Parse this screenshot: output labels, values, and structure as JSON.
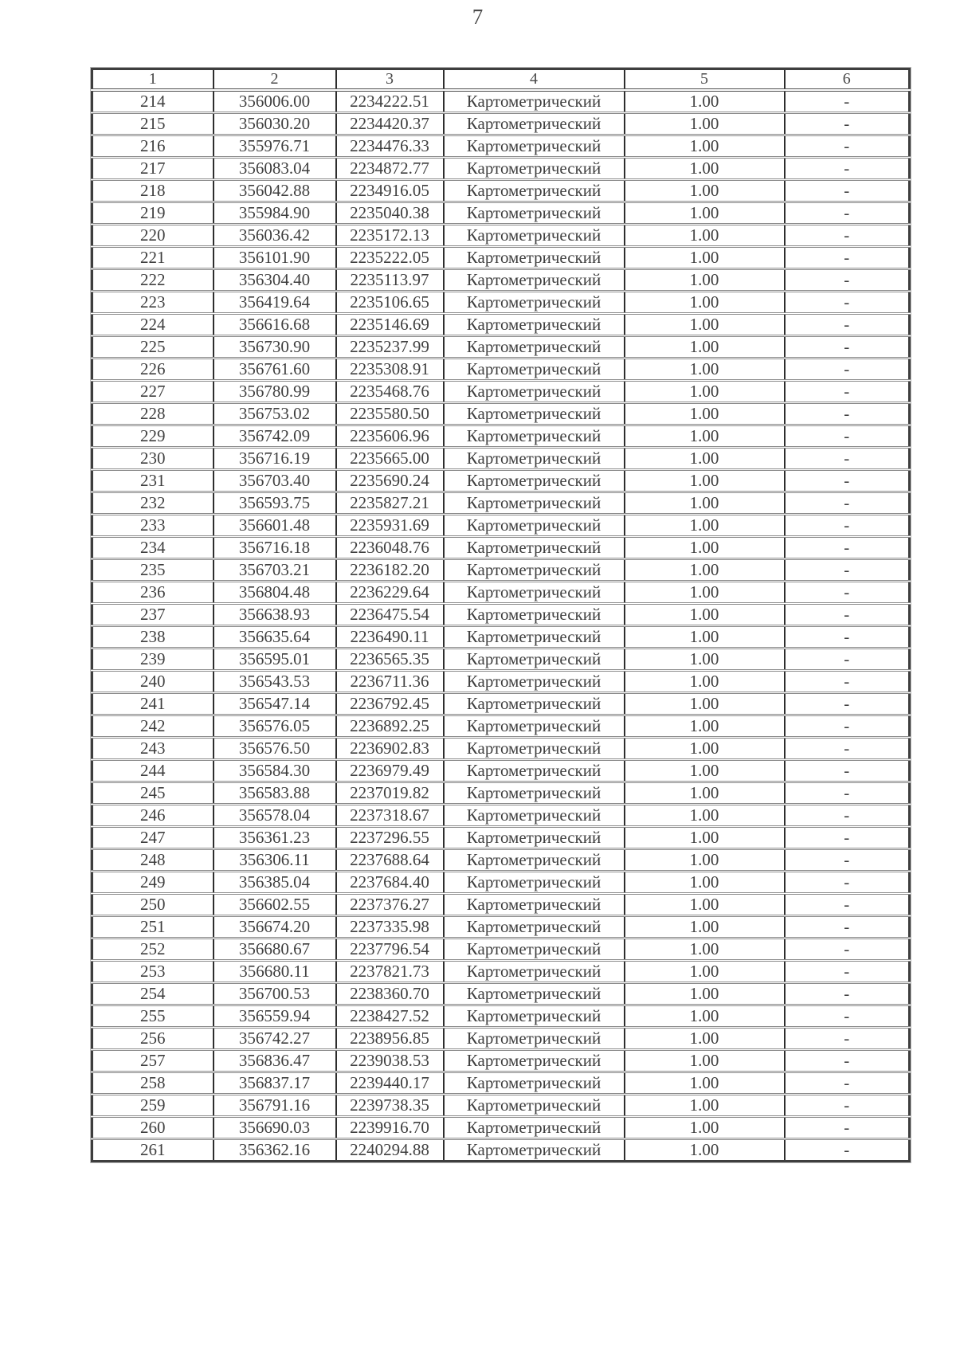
{
  "page": {
    "number": "7"
  },
  "table": {
    "headers": [
      "1",
      "2",
      "3",
      "4",
      "5",
      "6"
    ],
    "row_constants": {
      "method": "Картометрический",
      "precision": "1.00",
      "dash": "-"
    },
    "rows": [
      [
        "214",
        "356006.00",
        "2234222.51"
      ],
      [
        "215",
        "356030.20",
        "2234420.37"
      ],
      [
        "216",
        "355976.71",
        "2234476.33"
      ],
      [
        "217",
        "356083.04",
        "2234872.77"
      ],
      [
        "218",
        "356042.88",
        "2234916.05"
      ],
      [
        "219",
        "355984.90",
        "2235040.38"
      ],
      [
        "220",
        "356036.42",
        "2235172.13"
      ],
      [
        "221",
        "356101.90",
        "2235222.05"
      ],
      [
        "222",
        "356304.40",
        "2235113.97"
      ],
      [
        "223",
        "356419.64",
        "2235106.65"
      ],
      [
        "224",
        "356616.68",
        "2235146.69"
      ],
      [
        "225",
        "356730.90",
        "2235237.99"
      ],
      [
        "226",
        "356761.60",
        "2235308.91"
      ],
      [
        "227",
        "356780.99",
        "2235468.76"
      ],
      [
        "228",
        "356753.02",
        "2235580.50"
      ],
      [
        "229",
        "356742.09",
        "2235606.96"
      ],
      [
        "230",
        "356716.19",
        "2235665.00"
      ],
      [
        "231",
        "356703.40",
        "2235690.24"
      ],
      [
        "232",
        "356593.75",
        "2235827.21"
      ],
      [
        "233",
        "356601.48",
        "2235931.69"
      ],
      [
        "234",
        "356716.18",
        "2236048.76"
      ],
      [
        "235",
        "356703.21",
        "2236182.20"
      ],
      [
        "236",
        "356804.48",
        "2236229.64"
      ],
      [
        "237",
        "356638.93",
        "2236475.54"
      ],
      [
        "238",
        "356635.64",
        "2236490.11"
      ],
      [
        "239",
        "356595.01",
        "2236565.35"
      ],
      [
        "240",
        "356543.53",
        "2236711.36"
      ],
      [
        "241",
        "356547.14",
        "2236792.45"
      ],
      [
        "242",
        "356576.05",
        "2236892.25"
      ],
      [
        "243",
        "356576.50",
        "2236902.83"
      ],
      [
        "244",
        "356584.30",
        "2236979.49"
      ],
      [
        "245",
        "356583.88",
        "2237019.82"
      ],
      [
        "246",
        "356578.04",
        "2237318.67"
      ],
      [
        "247",
        "356361.23",
        "2237296.55"
      ],
      [
        "248",
        "356306.11",
        "2237688.64"
      ],
      [
        "249",
        "356385.04",
        "2237684.40"
      ],
      [
        "250",
        "356602.55",
        "2237376.27"
      ],
      [
        "251",
        "356674.20",
        "2237335.98"
      ],
      [
        "252",
        "356680.67",
        "2237796.54"
      ],
      [
        "253",
        "356680.11",
        "2237821.73"
      ],
      [
        "254",
        "356700.53",
        "2238360.70"
      ],
      [
        "255",
        "356559.94",
        "2238427.52"
      ],
      [
        "256",
        "356742.27",
        "2238956.85"
      ],
      [
        "257",
        "356836.47",
        "2239038.53"
      ],
      [
        "258",
        "356837.17",
        "2239440.17"
      ],
      [
        "259",
        "356791.16",
        "2239738.35"
      ],
      [
        "260",
        "356690.03",
        "2239916.70"
      ],
      [
        "261",
        "356362.16",
        "2240294.88"
      ]
    ]
  }
}
